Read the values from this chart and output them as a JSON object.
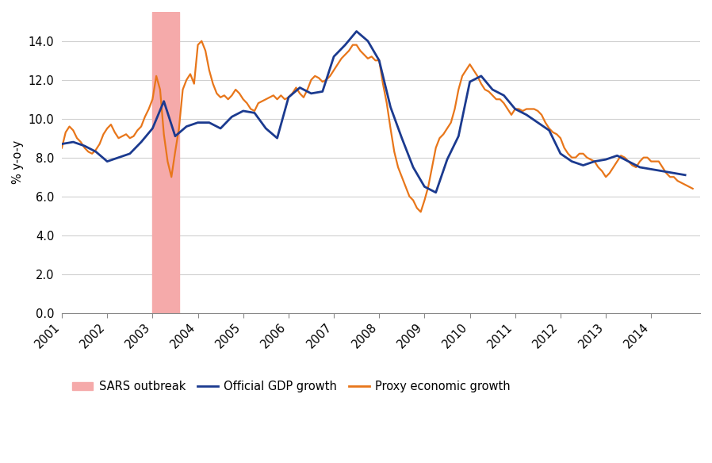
{
  "ylabel": "% y-o-y",
  "ylim": [
    0.0,
    15.5
  ],
  "yticks": [
    0.0,
    2.0,
    4.0,
    6.0,
    8.0,
    10.0,
    12.0,
    14.0
  ],
  "sars_start": 2003.0,
  "sars_end": 2003.583,
  "sars_color": "#f5aaaa",
  "official_color": "#1b3a8f",
  "proxy_color": "#e8761a",
  "background_color": "#ffffff",
  "official_gdp": {
    "x": [
      2001.0,
      2001.25,
      2001.5,
      2001.75,
      2002.0,
      2002.25,
      2002.5,
      2002.75,
      2003.0,
      2003.25,
      2003.5,
      2003.75,
      2004.0,
      2004.25,
      2004.5,
      2004.75,
      2005.0,
      2005.25,
      2005.5,
      2005.75,
      2006.0,
      2006.25,
      2006.5,
      2006.75,
      2007.0,
      2007.25,
      2007.5,
      2007.75,
      2008.0,
      2008.25,
      2008.5,
      2008.75,
      2009.0,
      2009.25,
      2009.5,
      2009.75,
      2010.0,
      2010.25,
      2010.5,
      2010.75,
      2011.0,
      2011.25,
      2011.5,
      2011.75,
      2012.0,
      2012.25,
      2012.5,
      2012.75,
      2013.0,
      2013.25,
      2013.5,
      2013.75,
      2014.0,
      2014.25,
      2014.5,
      2014.75
    ],
    "y": [
      8.7,
      8.8,
      8.6,
      8.3,
      7.8,
      8.0,
      8.2,
      8.8,
      9.5,
      10.9,
      9.1,
      9.6,
      9.8,
      9.8,
      9.5,
      10.1,
      10.4,
      10.3,
      9.5,
      9.0,
      11.1,
      11.6,
      11.3,
      11.4,
      13.2,
      13.8,
      14.5,
      14.0,
      13.0,
      10.6,
      9.0,
      7.5,
      6.5,
      6.2,
      7.9,
      9.1,
      11.9,
      12.2,
      11.5,
      11.2,
      10.5,
      10.2,
      9.8,
      9.4,
      8.2,
      7.8,
      7.6,
      7.8,
      7.9,
      8.1,
      7.8,
      7.5,
      7.4,
      7.3,
      7.2,
      7.1
    ]
  },
  "proxy_gdp_x": [
    2001.0,
    2001.083,
    2001.167,
    2001.25,
    2001.333,
    2001.417,
    2001.5,
    2001.583,
    2001.667,
    2001.75,
    2001.833,
    2001.917,
    2002.0,
    2002.083,
    2002.167,
    2002.25,
    2002.333,
    2002.417,
    2002.5,
    2002.583,
    2002.667,
    2002.75,
    2002.833,
    2002.917,
    2003.0,
    2003.083,
    2003.167,
    2003.25,
    2003.333,
    2003.417,
    2003.5,
    2003.583,
    2003.667,
    2003.75,
    2003.833,
    2003.917,
    2004.0,
    2004.083,
    2004.167,
    2004.25,
    2004.333,
    2004.417,
    2004.5,
    2004.583,
    2004.667,
    2004.75,
    2004.833,
    2004.917,
    2005.0,
    2005.083,
    2005.167,
    2005.25,
    2005.333,
    2005.417,
    2005.5,
    2005.583,
    2005.667,
    2005.75,
    2005.833,
    2005.917,
    2006.0,
    2006.083,
    2006.167,
    2006.25,
    2006.333,
    2006.417,
    2006.5,
    2006.583,
    2006.667,
    2006.75,
    2006.833,
    2006.917,
    2007.0,
    2007.083,
    2007.167,
    2007.25,
    2007.333,
    2007.417,
    2007.5,
    2007.583,
    2007.667,
    2007.75,
    2007.833,
    2007.917,
    2008.0,
    2008.083,
    2008.167,
    2008.25,
    2008.333,
    2008.417,
    2008.5,
    2008.583,
    2008.667,
    2008.75,
    2008.833,
    2008.917,
    2009.0,
    2009.083,
    2009.167,
    2009.25,
    2009.333,
    2009.417,
    2009.5,
    2009.583,
    2009.667,
    2009.75,
    2009.833,
    2009.917,
    2010.0,
    2010.083,
    2010.167,
    2010.25,
    2010.333,
    2010.417,
    2010.5,
    2010.583,
    2010.667,
    2010.75,
    2010.833,
    2010.917,
    2011.0,
    2011.083,
    2011.167,
    2011.25,
    2011.333,
    2011.417,
    2011.5,
    2011.583,
    2011.667,
    2011.75,
    2011.833,
    2011.917,
    2012.0,
    2012.083,
    2012.167,
    2012.25,
    2012.333,
    2012.417,
    2012.5,
    2012.583,
    2012.667,
    2012.75,
    2012.833,
    2012.917,
    2013.0,
    2013.083,
    2013.167,
    2013.25,
    2013.333,
    2013.417,
    2013.5,
    2013.583,
    2013.667,
    2013.75,
    2013.833,
    2013.917,
    2014.0,
    2014.083,
    2014.167,
    2014.25,
    2014.333,
    2014.417,
    2014.5,
    2014.583,
    2014.667,
    2014.75,
    2014.833,
    2014.917
  ],
  "proxy_gdp_y": [
    8.5,
    9.3,
    9.6,
    9.4,
    9.0,
    8.8,
    8.5,
    8.3,
    8.2,
    8.4,
    8.7,
    9.2,
    9.5,
    9.7,
    9.3,
    9.0,
    9.1,
    9.2,
    9.0,
    9.1,
    9.4,
    9.6,
    10.1,
    10.5,
    11.0,
    12.2,
    11.5,
    9.2,
    7.8,
    7.0,
    8.3,
    9.5,
    11.5,
    12.0,
    12.3,
    11.8,
    13.8,
    14.0,
    13.5,
    12.5,
    11.8,
    11.3,
    11.1,
    11.2,
    11.0,
    11.2,
    11.5,
    11.3,
    11.0,
    10.8,
    10.5,
    10.4,
    10.8,
    10.9,
    11.0,
    11.1,
    11.2,
    11.0,
    11.2,
    11.0,
    11.1,
    11.3,
    11.6,
    11.3,
    11.1,
    11.5,
    12.0,
    12.2,
    12.1,
    11.9,
    12.0,
    12.2,
    12.5,
    12.8,
    13.1,
    13.3,
    13.5,
    13.8,
    13.8,
    13.5,
    13.3,
    13.1,
    13.2,
    13.0,
    13.0,
    11.8,
    10.8,
    9.5,
    8.3,
    7.5,
    7.0,
    6.5,
    6.0,
    5.8,
    5.4,
    5.2,
    5.8,
    6.5,
    7.5,
    8.5,
    9.0,
    9.2,
    9.5,
    9.8,
    10.5,
    11.5,
    12.2,
    12.5,
    12.8,
    12.5,
    12.2,
    11.8,
    11.5,
    11.4,
    11.2,
    11.0,
    11.0,
    10.8,
    10.5,
    10.2,
    10.5,
    10.5,
    10.4,
    10.5,
    10.5,
    10.5,
    10.4,
    10.2,
    9.8,
    9.5,
    9.3,
    9.2,
    9.0,
    8.5,
    8.2,
    8.0,
    8.0,
    8.2,
    8.2,
    8.0,
    7.9,
    7.8,
    7.5,
    7.3,
    7.0,
    7.2,
    7.5,
    7.8,
    8.1,
    8.0,
    7.8,
    7.6,
    7.5,
    7.8,
    8.0,
    8.0,
    7.8,
    7.8,
    7.8,
    7.5,
    7.2,
    7.0,
    7.0,
    6.8,
    6.7,
    6.6,
    6.5,
    6.4
  ],
  "xticks": [
    2001,
    2002,
    2003,
    2004,
    2005,
    2006,
    2007,
    2008,
    2009,
    2010,
    2011,
    2012,
    2013,
    2014
  ],
  "xlim": [
    2001.0,
    2015.08
  ],
  "legend_labels": [
    "SARS outbreak",
    "Official GDP growth",
    "Proxy economic growth"
  ]
}
